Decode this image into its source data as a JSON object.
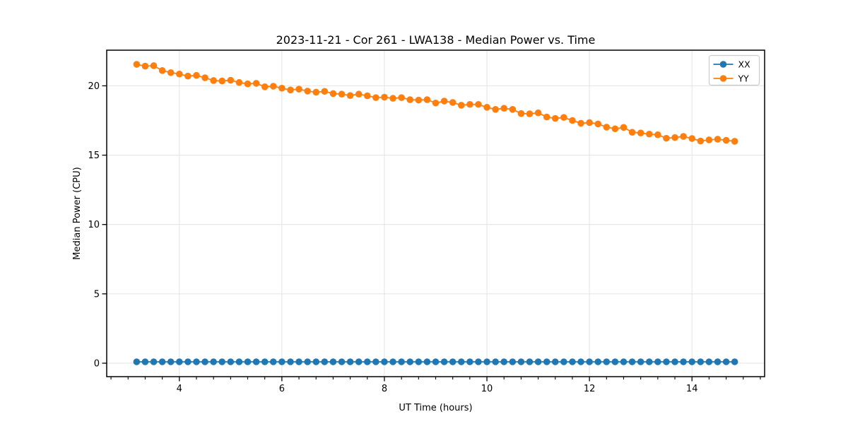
{
  "figure": {
    "background": "#ffffff",
    "title": "2023-11-21 - Cor 261 - LWA138 - Median Power vs. Time"
  },
  "chart_data": {
    "type": "line",
    "title": "2023-11-21 - Cor 261 - LWA138 - Median Power vs. Time",
    "xlabel": "UT Time (hours)",
    "ylabel": "Median Power (CPU)",
    "xlim": [
      2.583,
      15.417
    ],
    "ylim": [
      -0.97,
      22.57
    ],
    "x_major_ticks": [
      4,
      6,
      8,
      10,
      12,
      14
    ],
    "x_minor_step_hours": 0.3333333,
    "y_major_ticks": [
      0,
      5,
      10,
      15,
      20
    ],
    "grid": true,
    "grid_color": "#e6e6e6",
    "spine_color": "#000000",
    "legend_position": "upper right",
    "marker": "circle",
    "x": [
      3.167,
      3.333,
      3.5,
      3.667,
      3.833,
      4.0,
      4.167,
      4.333,
      4.5,
      4.667,
      4.833,
      5.0,
      5.167,
      5.333,
      5.5,
      5.667,
      5.833,
      6.0,
      6.167,
      6.333,
      6.5,
      6.667,
      6.833,
      7.0,
      7.167,
      7.333,
      7.5,
      7.667,
      7.833,
      8.0,
      8.167,
      8.333,
      8.5,
      8.667,
      8.833,
      9.0,
      9.167,
      9.333,
      9.5,
      9.667,
      9.833,
      10.0,
      10.167,
      10.333,
      10.5,
      10.667,
      10.833,
      11.0,
      11.167,
      11.333,
      11.5,
      11.667,
      11.833,
      12.0,
      12.167,
      12.333,
      12.5,
      12.667,
      12.833,
      13.0,
      13.167,
      13.333,
      13.5,
      13.667,
      13.833,
      14.0,
      14.167,
      14.333,
      14.5,
      14.667,
      14.833
    ],
    "series": [
      {
        "name": "XX",
        "color": "#1f77b4",
        "values": [
          0.1,
          0.1,
          0.1,
          0.1,
          0.1,
          0.1,
          0.1,
          0.1,
          0.1,
          0.1,
          0.1,
          0.1,
          0.1,
          0.1,
          0.1,
          0.1,
          0.1,
          0.1,
          0.1,
          0.1,
          0.1,
          0.1,
          0.1,
          0.1,
          0.1,
          0.1,
          0.1,
          0.1,
          0.1,
          0.1,
          0.1,
          0.1,
          0.1,
          0.1,
          0.1,
          0.1,
          0.1,
          0.1,
          0.1,
          0.1,
          0.1,
          0.1,
          0.1,
          0.1,
          0.1,
          0.1,
          0.1,
          0.1,
          0.1,
          0.1,
          0.1,
          0.1,
          0.1,
          0.1,
          0.1,
          0.1,
          0.1,
          0.1,
          0.1,
          0.1,
          0.1,
          0.1,
          0.1,
          0.1,
          0.1,
          0.1,
          0.1,
          0.1,
          0.1,
          0.1,
          0.1
        ]
      },
      {
        "name": "YY",
        "color": "#ff7f0e",
        "values": [
          21.55,
          21.42,
          21.45,
          21.1,
          20.95,
          20.85,
          20.7,
          20.75,
          20.58,
          20.38,
          20.35,
          20.4,
          20.24,
          20.14,
          20.18,
          19.93,
          19.97,
          19.83,
          19.7,
          19.76,
          19.62,
          19.54,
          19.6,
          19.44,
          19.4,
          19.3,
          19.4,
          19.28,
          19.15,
          19.18,
          19.1,
          19.15,
          19.0,
          18.97,
          19.0,
          18.76,
          18.9,
          18.8,
          18.6,
          18.66,
          18.66,
          18.45,
          18.3,
          18.38,
          18.3,
          18.0,
          17.98,
          18.05,
          17.75,
          17.65,
          17.72,
          17.5,
          17.3,
          17.35,
          17.25,
          17.02,
          16.9,
          17.0,
          16.65,
          16.6,
          16.52,
          16.47,
          16.22,
          16.27,
          16.35,
          16.2,
          16.02,
          16.1,
          16.15,
          16.07,
          16.0
        ]
      }
    ]
  }
}
